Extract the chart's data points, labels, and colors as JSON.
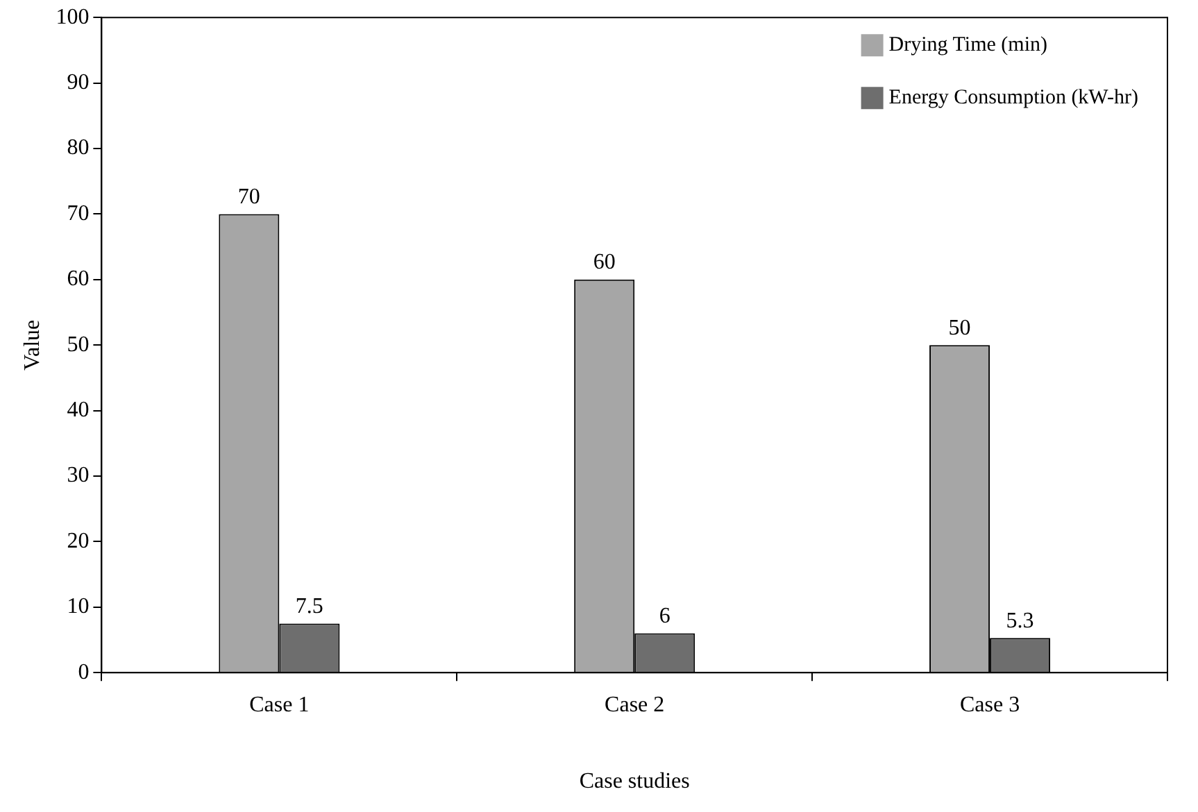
{
  "chart_data": {
    "type": "bar",
    "xlabel": "Case studies",
    "ylabel": "Value",
    "categories": [
      "Case 1",
      "Case 2",
      "Case 3"
    ],
    "series": [
      {
        "name": "Drying Time (min)",
        "color": "#a6a6a6",
        "values": [
          70,
          60,
          50
        ]
      },
      {
        "name": "Energy Consumption (kW-hr)",
        "color": "#6e6e6e",
        "values": [
          7.5,
          6,
          5.3
        ]
      }
    ],
    "ylim": [
      0,
      100
    ],
    "yticks": [
      0,
      10,
      20,
      30,
      40,
      50,
      60,
      70,
      80,
      90,
      100
    ],
    "grid": false,
    "legend": "top right",
    "data_labels": true
  }
}
